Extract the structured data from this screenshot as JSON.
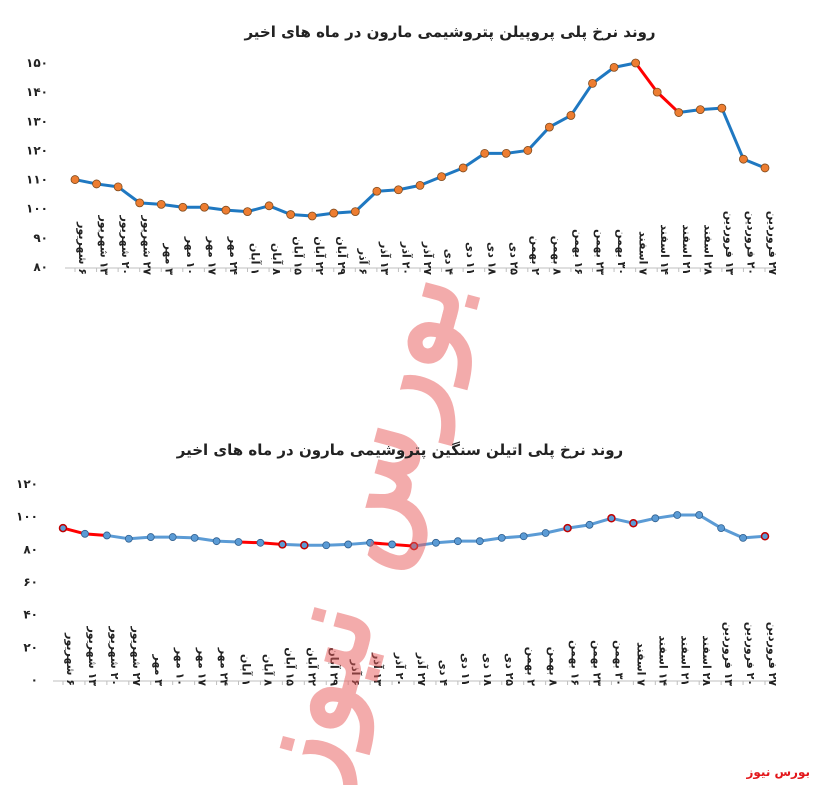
{
  "watermark_text": "بورس نیوز",
  "source": "بورس نیوز",
  "colors": {
    "line": "#1f78c1",
    "line_light": "#5b9bd5",
    "decline": "#ff0000",
    "marker_top": "#ed7d31",
    "marker_bottom": "#5b9bd5",
    "marker_bottom_red": "#c00000",
    "watermark": "#e85a5a"
  },
  "chart_data": [
    {
      "type": "line",
      "title": "روند نرخ پلی پروپیلن پتروشیمی مارون در ماه های اخیر",
      "categories": [
        "۶ شهریور",
        "۱۳ شهریور",
        "۲۰ شهریور",
        "۲۷ شهریور",
        "۳ مهر",
        "۱۰ مهر",
        "۱۷ مهر",
        "۲۴ مهر",
        "۱ آبان",
        "۸ آبان",
        "۱۵ آبان",
        "۲۲ آبان",
        "۲۹ آبان",
        "۶ آذر",
        "۱۳ آذر",
        "۲۰ آذر",
        "۲۷ آذر",
        "۴ دی",
        "۱۱ دی",
        "۱۸ دی",
        "۲۵ دی",
        "۲ بهمن",
        "۸ بهمن",
        "۱۶ بهمن",
        "۲۳ بهمن",
        "۳۰ بهمن",
        "۷ اسفند",
        "۱۴ اسفند",
        "۲۱ اسفند",
        "۲۸ اسفند",
        "۱۳ فروردین",
        "۲۰ فروردین",
        "۲۷ فروردین"
      ],
      "values": [
        110,
        108.5,
        107.5,
        102,
        101.5,
        100.5,
        100.5,
        99.5,
        99,
        101,
        98,
        97.5,
        98.5,
        99,
        106,
        106.5,
        108,
        111,
        114,
        119,
        119,
        120,
        128,
        132,
        143,
        148.5,
        150,
        140,
        133,
        134,
        134.5,
        117,
        114
      ],
      "decline_segments": [
        [
          26,
          28
        ]
      ],
      "ylim": [
        80,
        150
      ],
      "yticks": [
        80,
        90,
        100,
        110,
        120,
        130,
        140,
        150
      ],
      "ytick_labels": [
        "۸۰",
        "۹۰",
        "۱۰۰",
        "۱۱۰",
        "۱۲۰",
        "۱۳۰",
        "۱۴۰",
        "۱۵۰"
      ],
      "grid": false
    },
    {
      "type": "line",
      "title": "روند نرخ پلی اتیلن سنگین پتروشیمی مارون در ماه های اخیر",
      "categories": [
        "۶ شهریور",
        "۱۳ شهریور",
        "۲۰ شهریور",
        "۲۷ شهریور",
        "۳ مهر",
        "۱۰ مهر",
        "۱۷ مهر",
        "۲۴ مهر",
        "۱ آبان",
        "۸ آبان",
        "۱۵ آبان",
        "۲۲ آبان",
        "۲۹ آبان",
        "۶ آذر",
        "۱۳ آذر",
        "۲۰ آذر",
        "۲۷ آذر",
        "۴ دی",
        "۱۱ دی",
        "۱۸ دی",
        "۲۵ دی",
        "۲ بهمن",
        "۸ بهمن",
        "۱۶ بهمن",
        "۲۳ بهمن",
        "۳۰ بهمن",
        "۷ اسفند",
        "۱۴ اسفند",
        "۲۱ اسفند",
        "۲۸ اسفند",
        "۱۳ فروردین",
        "۲۰ فروردین",
        "۲۷ فروردین"
      ],
      "values": [
        93,
        89.5,
        88.5,
        86.5,
        87.5,
        87.5,
        87,
        85,
        84.5,
        84,
        83,
        82.5,
        82.5,
        83,
        84,
        83,
        82,
        84,
        85,
        85,
        87,
        88,
        90,
        93,
        95,
        99,
        96,
        99,
        101,
        101,
        93,
        87,
        88
      ],
      "decline_segments": [
        [
          0,
          2
        ],
        [
          8,
          10
        ],
        [
          14,
          16
        ]
      ],
      "red_markers": [
        0,
        10,
        11,
        16,
        23,
        25,
        26,
        32
      ],
      "ylim": [
        0,
        120
      ],
      "yticks": [
        0,
        20,
        40,
        60,
        80,
        100,
        120
      ],
      "ytick_labels": [
        "۰",
        "۲۰",
        "۴۰",
        "۶۰",
        "۸۰",
        "۱۰۰",
        "۱۲۰"
      ],
      "grid": false
    }
  ]
}
